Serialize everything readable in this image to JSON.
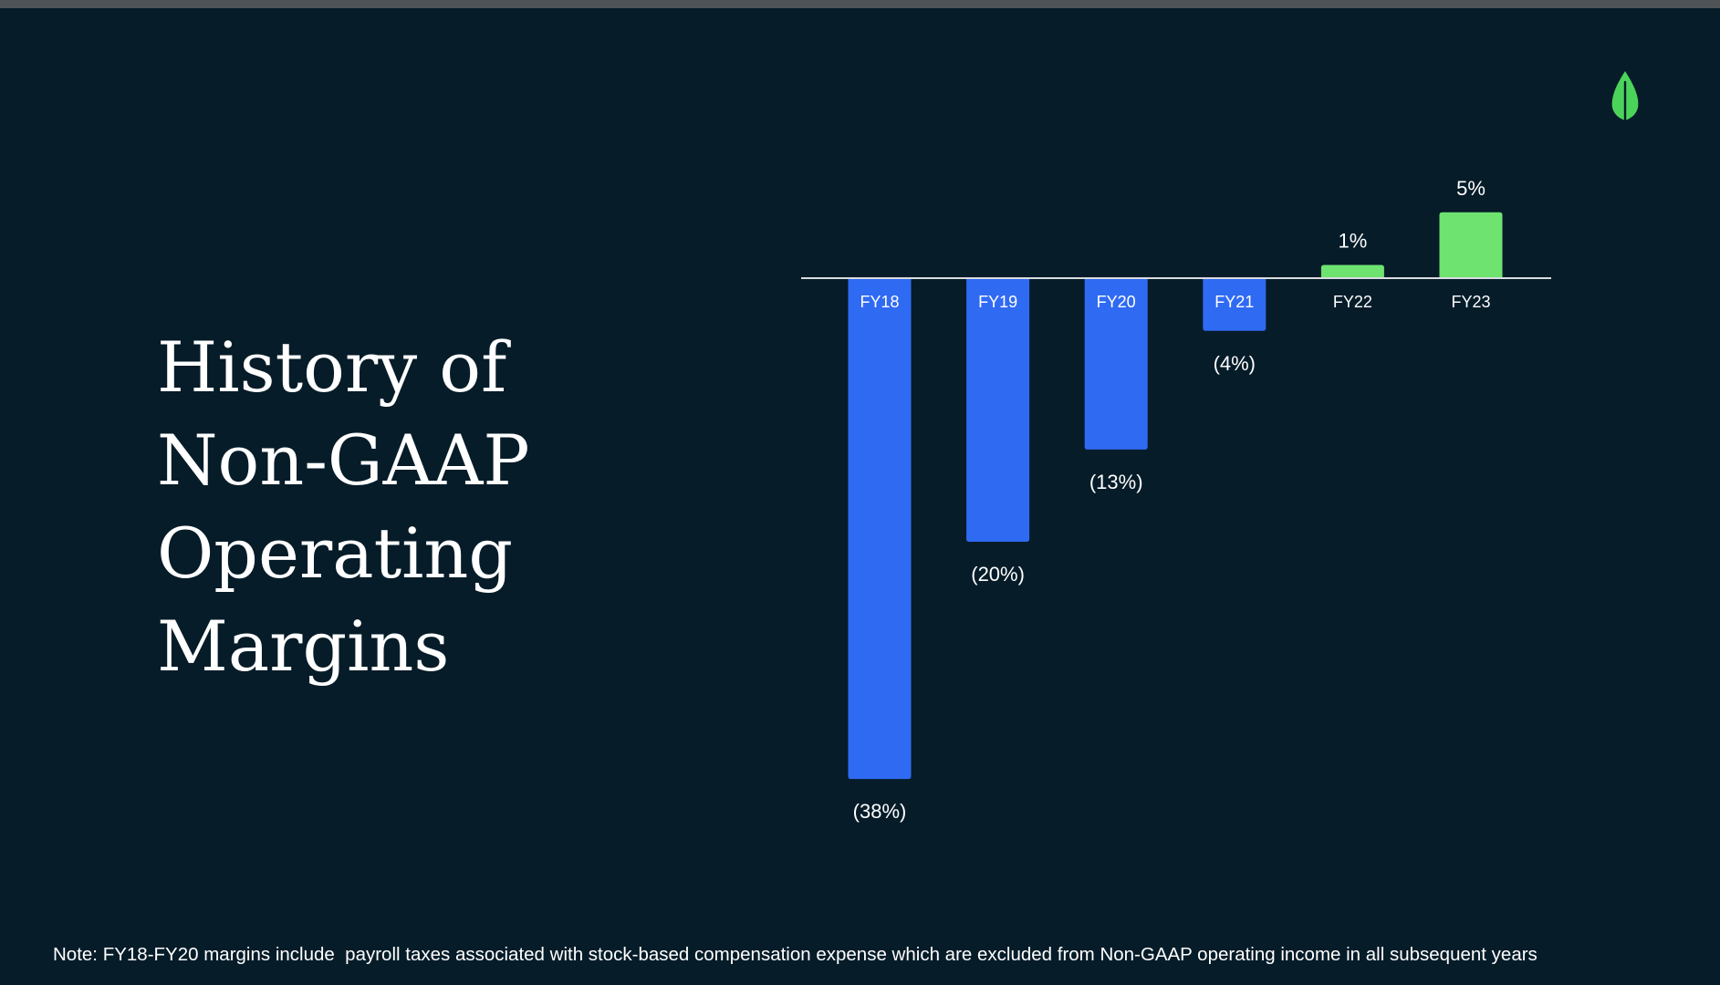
{
  "slide": {
    "title_lines": [
      "History of",
      "Non-GAAP",
      "Operating",
      "Margins"
    ],
    "footnote": "Note: FY18-FY20 margins include  payroll taxes associated with stock-based compensation expense which are excluded from Non-GAAP operating income in all subsequent years",
    "logo_icon": "leaf-icon",
    "colors": {
      "background": "#061c29",
      "negative": "#2f6af3",
      "positive": "#6ee36f",
      "logo": "#4cd45a",
      "text": "#ffffff"
    }
  },
  "chart_data": {
    "type": "bar",
    "title": "History of Non-GAAP Operating Margins",
    "categories": [
      "FY18",
      "FY19",
      "FY20",
      "FY21",
      "FY22",
      "FY23"
    ],
    "values": [
      -38,
      -20,
      -13,
      -4,
      1,
      5
    ],
    "value_labels": [
      "(38%)",
      "(20%)",
      "(13%)",
      "(4%)",
      "1%",
      "5%"
    ],
    "unit": "%",
    "ylim": [
      -38,
      5
    ],
    "grid": false,
    "legend": "none",
    "baseline_at": 0
  }
}
